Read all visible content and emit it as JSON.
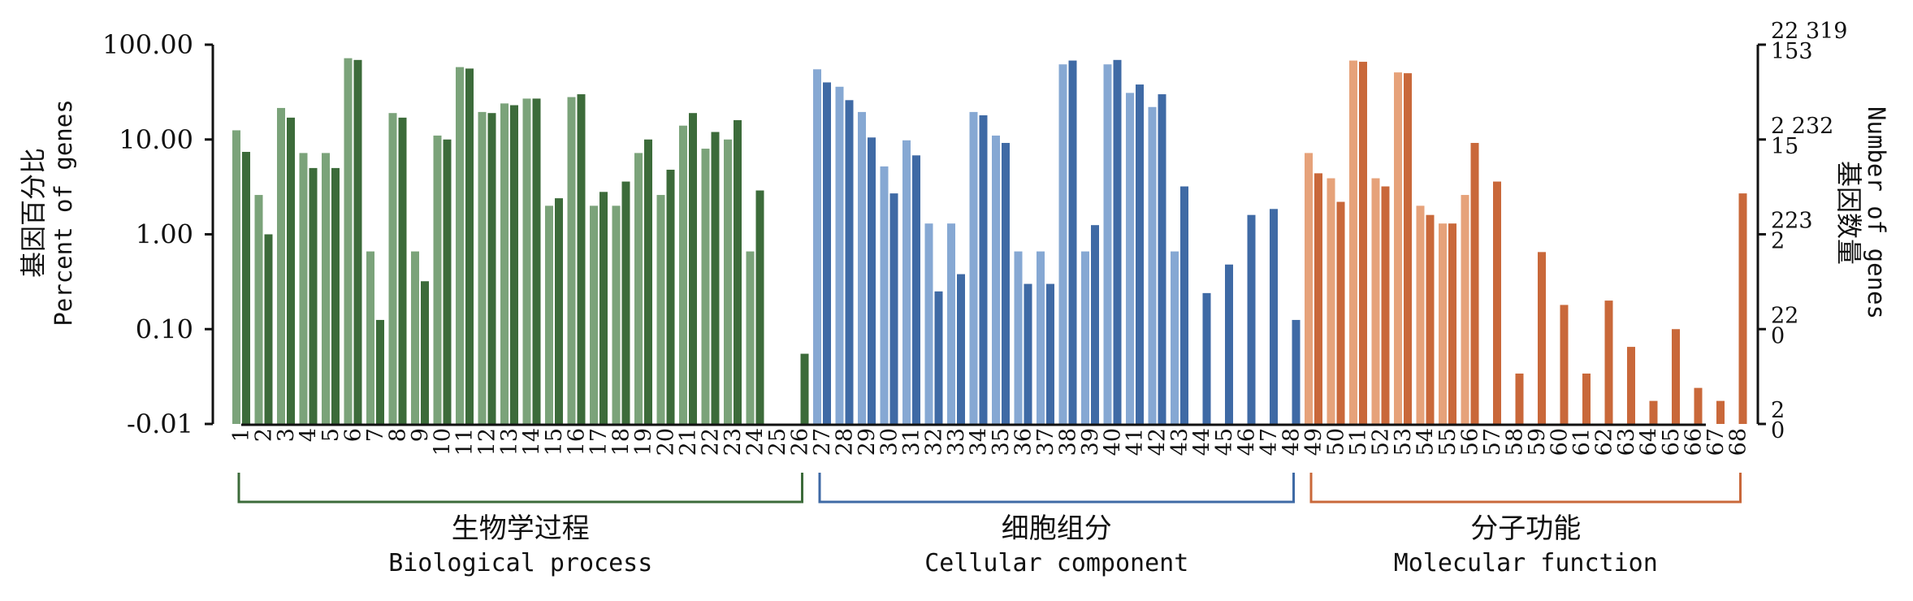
{
  "chart_data": {
    "type": "bar",
    "scale": "log",
    "ylabel_cn": "基因百分比",
    "ylabel_en": "Percent of genes",
    "y2label_cn": "基因数量",
    "y2label_en": "Number of genes",
    "y_ticks": [
      {
        "label": "100.00",
        "value": 100
      },
      {
        "label": "10.00",
        "value": 10
      },
      {
        "label": "1.00",
        "value": 1
      },
      {
        "label": "0.10",
        "value": 0.1
      },
      {
        "label": "-0.01",
        "value": 0.01
      }
    ],
    "y2_ticks": [
      {
        "upper": "22 319",
        "lower": "153",
        "value": 100
      },
      {
        "upper": "2 232",
        "lower": "15",
        "value": 10
      },
      {
        "upper": "223",
        "lower": "2",
        "value": 1
      },
      {
        "upper": "22",
        "lower": "0",
        "value": 0.1
      },
      {
        "upper": "2",
        "lower": "0",
        "value": 0.01
      }
    ],
    "categories": [
      "1",
      "2",
      "3",
      "4",
      "5",
      "6",
      "7",
      "8",
      "9",
      "10",
      "11",
      "12",
      "13",
      "14",
      "15",
      "16",
      "17",
      "18",
      "19",
      "20",
      "21",
      "22",
      "23",
      "24",
      "25",
      "26",
      "27",
      "28",
      "29",
      "30",
      "31",
      "32",
      "33",
      "34",
      "35",
      "36",
      "37",
      "38",
      "39",
      "40",
      "41",
      "42",
      "43",
      "44",
      "45",
      "46",
      "47",
      "48",
      "49",
      "50",
      "51",
      "52",
      "53",
      "54",
      "55",
      "56",
      "57",
      "58",
      "59",
      "60",
      "61",
      "62",
      "63",
      "64",
      "65",
      "66",
      "67",
      "68"
    ],
    "series": [
      {
        "values": [
          12.5,
          2.6,
          21.5,
          7.2,
          7.2,
          72,
          0.66,
          19,
          0.66,
          11,
          58,
          19.5,
          24,
          27,
          2,
          28,
          2,
          2,
          7.2,
          2.6,
          14,
          8,
          10,
          0.66,
          null,
          null,
          55,
          36,
          19.5,
          5.2,
          9.8,
          1.3,
          1.3,
          19.5,
          11,
          0.66,
          0.66,
          62,
          0.66,
          62,
          31,
          22,
          0.66,
          null,
          null,
          null,
          null,
          null,
          7.2,
          3.9,
          68,
          3.9,
          51,
          2,
          1.3,
          2.6,
          null,
          null,
          null,
          null,
          null,
          null,
          null,
          null,
          null,
          null,
          null,
          null
        ]
      },
      {
        "values": [
          7.4,
          1.0,
          17,
          5.0,
          5.0,
          69,
          0.125,
          17,
          0.32,
          10,
          56,
          19,
          23,
          27,
          2.4,
          30,
          2.8,
          3.6,
          10,
          4.8,
          19,
          12,
          16,
          2.9,
          null,
          0.055,
          40,
          26,
          10.5,
          2.7,
          6.8,
          0.25,
          0.38,
          18,
          9.2,
          0.3,
          0.3,
          68,
          1.25,
          69,
          38,
          30,
          3.2,
          0.24,
          0.48,
          1.6,
          1.85,
          0.125,
          4.4,
          2.2,
          66,
          3.2,
          50,
          1.6,
          1.3,
          9.2,
          3.6,
          0.034,
          0.65,
          0.18,
          0.034,
          0.2,
          0.065,
          0.0175,
          0.1,
          0.024,
          0.0175,
          2.7
        ]
      }
    ],
    "groups": [
      {
        "cn": "生物学过程",
        "en": "Biological process",
        "first": 1,
        "last": 26,
        "light": "#7ba37a",
        "dark": "#3c6b3a"
      },
      {
        "cn": "细胞组分",
        "en": "Cellular component",
        "first": 27,
        "last": 48,
        "light": "#86a8d3",
        "dark": "#3f6aa5"
      },
      {
        "cn": "分子功能",
        "en": "Molecular function",
        "first": 49,
        "last": 68,
        "light": "#e6a27a",
        "dark": "#c9683a"
      }
    ]
  }
}
